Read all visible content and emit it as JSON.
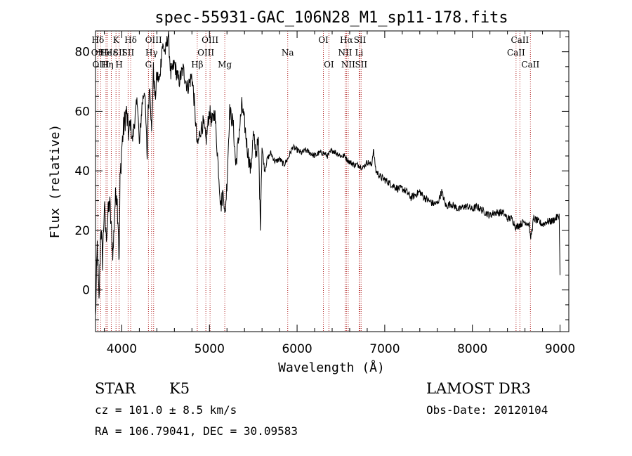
{
  "chart_data": {
    "type": "line",
    "title": "spec-55931-GAC_106N28_M1_sp11-178.fits",
    "xlabel": "Wavelength (Å)",
    "ylabel": "Flux (relative)",
    "xlim": [
      3700,
      9100
    ],
    "ylim": [
      -14,
      87
    ],
    "x_ticks": [
      4000,
      5000,
      6000,
      7000,
      8000,
      9000
    ],
    "y_ticks": [
      0,
      20,
      40,
      60,
      80
    ],
    "series": [
      {
        "name": "spectrum",
        "x": [
          3700,
          3720,
          3740,
          3760,
          3780,
          3800,
          3820,
          3840,
          3860,
          3880,
          3900,
          3920,
          3940,
          3960,
          3970,
          3980,
          4000,
          4020,
          4050,
          4080,
          4100,
          4120,
          4150,
          4180,
          4200,
          4230,
          4260,
          4290,
          4300,
          4320,
          4340,
          4360,
          4380,
          4400,
          4430,
          4460,
          4500,
          4530,
          4560,
          4600,
          4650,
          4700,
          4750,
          4800,
          4830,
          4861,
          4900,
          4930,
          4960,
          5000,
          5030,
          5060,
          5100,
          5130,
          5160,
          5175,
          5200,
          5230,
          5270,
          5300,
          5330,
          5370,
          5400,
          5430,
          5470,
          5500,
          5530,
          5560,
          5580,
          5600,
          5630,
          5660,
          5700,
          5750,
          5800,
          5850,
          5893,
          5950,
          6000,
          6050,
          6100,
          6150,
          6200,
          6250,
          6300,
          6350,
          6400,
          6450,
          6500,
          6550,
          6563,
          6600,
          6650,
          6700,
          6750,
          6800,
          6850,
          6870,
          6900,
          6950,
          7000,
          7050,
          7100,
          7150,
          7200,
          7250,
          7300,
          7350,
          7400,
          7450,
          7500,
          7550,
          7600,
          7650,
          7700,
          7750,
          7800,
          7850,
          7900,
          7950,
          8000,
          8050,
          8100,
          8150,
          8200,
          8250,
          8300,
          8350,
          8400,
          8450,
          8498,
          8542,
          8600,
          8650,
          8662,
          8700,
          8750,
          8800,
          8850,
          8900,
          8950,
          8990,
          9000
        ],
        "values": [
          -10,
          15,
          -5,
          22,
          10,
          28,
          18,
          24,
          30,
          20,
          12,
          28,
          34,
          22,
          8,
          36,
          48,
          54,
          60,
          52,
          56,
          50,
          58,
          64,
          48,
          62,
          68,
          44,
          60,
          70,
          52,
          74,
          64,
          72,
          70,
          82,
          80,
          86,
          72,
          76,
          70,
          74,
          68,
          72,
          62,
          48,
          54,
          56,
          50,
          60,
          56,
          60,
          42,
          28,
          34,
          24,
          36,
          60,
          56,
          42,
          50,
          62,
          56,
          48,
          40,
          52,
          46,
          50,
          22,
          48,
          40,
          44,
          46,
          43,
          44,
          42,
          44,
          48,
          47,
          46,
          47,
          46,
          45,
          46,
          46,
          45,
          47,
          46,
          45,
          45,
          44,
          43,
          42,
          42,
          41,
          43,
          42,
          47,
          40,
          38,
          37,
          36,
          35,
          34,
          34,
          33,
          31,
          32,
          33,
          31,
          30,
          29,
          29,
          33,
          28,
          29,
          28,
          27,
          28,
          28,
          27,
          28,
          27,
          26,
          25,
          26,
          26,
          26,
          24,
          24,
          21,
          22,
          23,
          22,
          17,
          24,
          23,
          22,
          23,
          23,
          24,
          25,
          5
        ]
      }
    ],
    "lines": [
      {
        "label": "Hδ",
        "wave": 3727,
        "row": 0
      },
      {
        "label": "OII",
        "wave": 3727,
        "row": 1
      },
      {
        "label": "OIII",
        "wave": 3760,
        "row": 2
      },
      {
        "label": "He",
        "wave": 3820,
        "row": 1
      },
      {
        "label": "Hη",
        "wave": 3835,
        "row": 2
      },
      {
        "label": "Hε",
        "wave": 3880,
        "row": 1
      },
      {
        "label": "K",
        "wave": 3934,
        "row": 0
      },
      {
        "label": "SII",
        "wave": 3969,
        "row": 1
      },
      {
        "label": "H",
        "wave": 3969,
        "row": 2
      },
      {
        "label": "Hδ",
        "wave": 4101,
        "row": 0
      },
      {
        "label": "SII",
        "wave": 4072,
        "row": 1
      },
      {
        "label": "OIII",
        "wave": 4363,
        "row": 0
      },
      {
        "label": "Hγ",
        "wave": 4340,
        "row": 1
      },
      {
        "label": "G",
        "wave": 4304,
        "row": 2
      },
      {
        "label": "Hβ",
        "wave": 4861,
        "row": 2
      },
      {
        "label": "OIII",
        "wave": 4959,
        "row": 1
      },
      {
        "label": "OIII",
        "wave": 5007,
        "row": 0
      },
      {
        "label": "Mg",
        "wave": 5175,
        "row": 2
      },
      {
        "label": "Na",
        "wave": 5893,
        "row": 1
      },
      {
        "label": "OI",
        "wave": 6300,
        "row": 0
      },
      {
        "label": "OI",
        "wave": 6363,
        "row": 2
      },
      {
        "label": "Hα",
        "wave": 6563,
        "row": 0
      },
      {
        "label": "NII",
        "wave": 6548,
        "row": 1
      },
      {
        "label": "NII",
        "wave": 6583,
        "row": 2
      },
      {
        "label": "SII",
        "wave": 6717,
        "row": 0
      },
      {
        "label": "Li",
        "wave": 6708,
        "row": 1
      },
      {
        "label": "SII",
        "wave": 6731,
        "row": 2
      },
      {
        "label": "CaII",
        "wave": 8542,
        "row": 0
      },
      {
        "label": "CaII",
        "wave": 8498,
        "row": 1
      },
      {
        "label": "CaII",
        "wave": 8662,
        "row": 2
      }
    ]
  },
  "info": {
    "class": "STAR",
    "subclass": "K5",
    "cz": "cz = 101.0 ± 8.5 km/s",
    "coords": "RA = 106.79041, DEC =  30.09583",
    "survey": "LAMOST DR3",
    "obs_date": "Obs-Date: 20120104"
  }
}
